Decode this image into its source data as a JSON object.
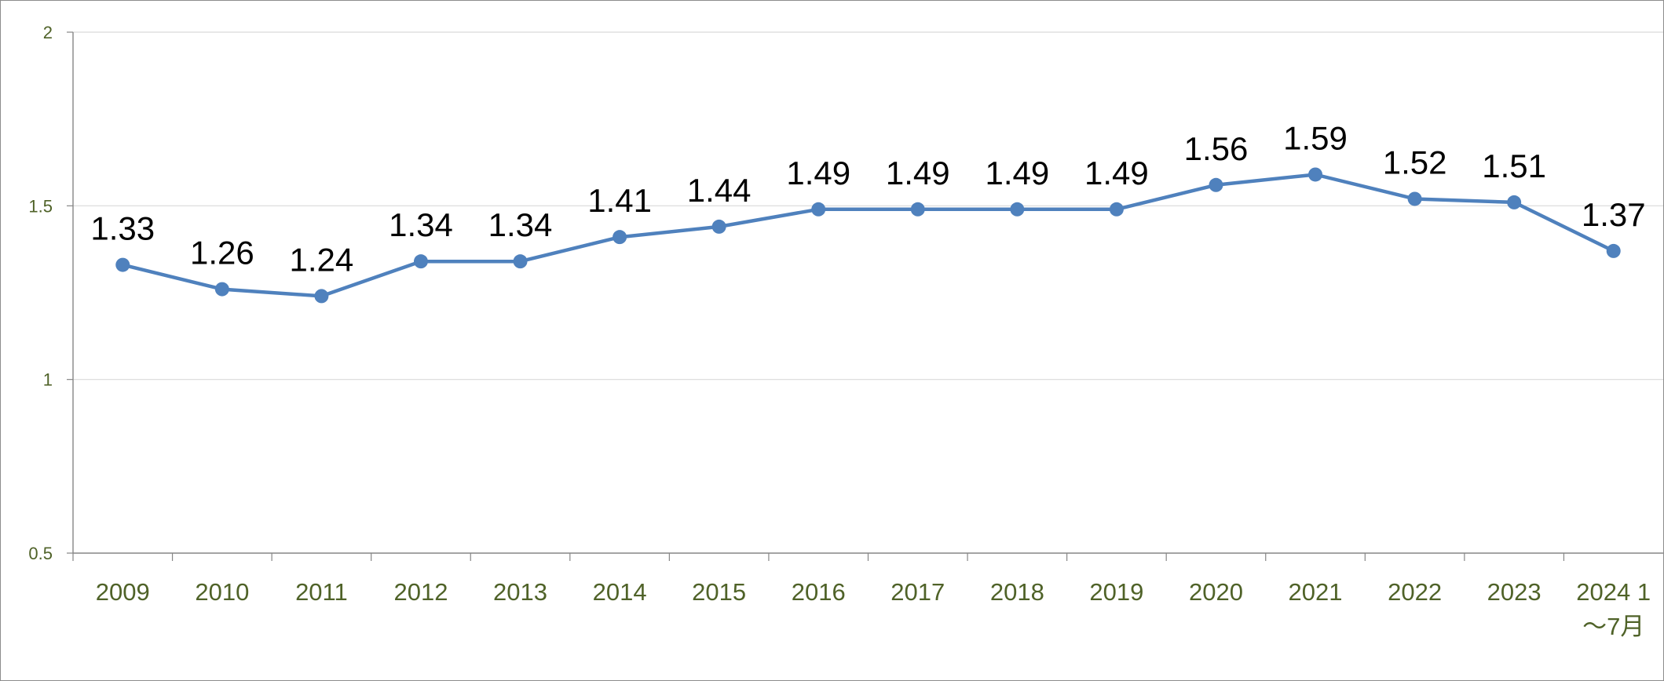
{
  "chart_data": {
    "type": "line",
    "title": "",
    "xlabel": "",
    "ylabel": "",
    "categories": [
      "2009",
      "2010",
      "2011",
      "2012",
      "2013",
      "2014",
      "2015",
      "2016",
      "2017",
      "2018",
      "2019",
      "2020",
      "2021",
      "2022",
      "2023",
      "2024 1\n～7月"
    ],
    "series": [
      {
        "values": [
          1.33,
          1.26,
          1.24,
          1.34,
          1.34,
          1.41,
          1.44,
          1.49,
          1.49,
          1.49,
          1.49,
          1.56,
          1.59,
          1.52,
          1.51,
          1.37
        ],
        "data_labels": [
          "1.33",
          "1.26",
          "1.24",
          "1.34",
          "1.34",
          "1.41",
          "1.44",
          "1.49",
          "1.49",
          "1.49",
          "1.49",
          "1.56",
          "1.59",
          "1.52",
          "1.51",
          "1.37"
        ]
      }
    ],
    "ylim": [
      0.5,
      2
    ],
    "y_ticks": [
      "0.5",
      "1",
      "1.5",
      "2"
    ],
    "grid": true,
    "legend": "none",
    "colors": {
      "line": "#4f81bd",
      "marker": "#4f81bd",
      "tick_label": "#4f6228",
      "gridline": "#d9d9d9",
      "axis": "#868686"
    }
  }
}
